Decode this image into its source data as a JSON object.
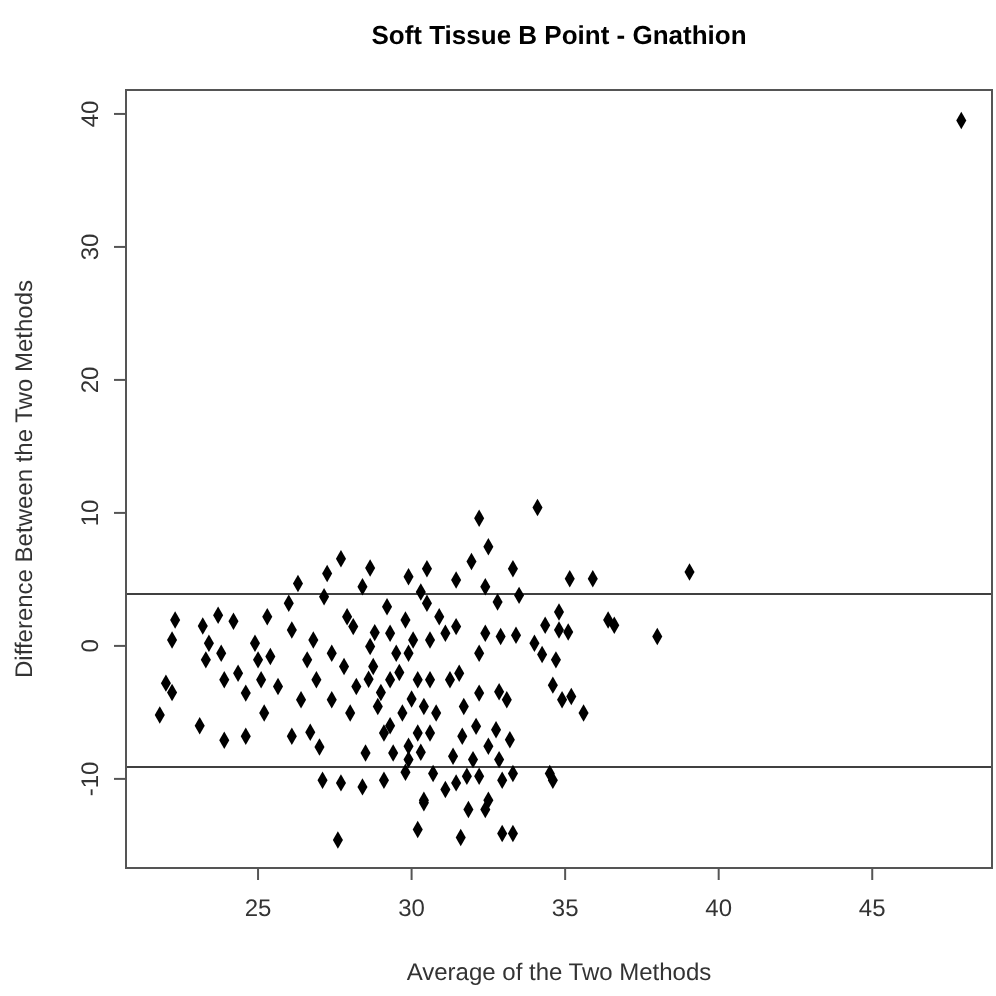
{
  "chart_data": {
    "type": "scatter",
    "title": "Soft Tissue B Point - Gnathion",
    "xlabel": "Average of the Two Methods",
    "ylabel": "Difference Between the Two Methods",
    "xlim": [
      20.7,
      48.9
    ],
    "xticks": [
      25,
      30,
      35,
      40,
      45
    ],
    "ylim": [
      -16.7,
      41.8
    ],
    "yticks": [
      -10,
      0,
      10,
      20,
      30,
      40
    ],
    "grid": false,
    "marker": "diamond",
    "ref_lines": [
      {
        "axis": "y",
        "value": 3.9,
        "color": "#404040"
      },
      {
        "axis": "y",
        "value": -9.1,
        "color": "#404040"
      }
    ],
    "series": [
      {
        "color": "#000000",
        "x": [
          21.8,
          22.0,
          22.2,
          22.2,
          22.3,
          23.1,
          23.2,
          23.3,
          23.4,
          23.7,
          23.9,
          23.8,
          23.9,
          24.2,
          24.35,
          24.6,
          24.6,
          24.9,
          25.0,
          25.1,
          25.2,
          25.3,
          25.4,
          25.65,
          26.0,
          26.1,
          26.1,
          26.3,
          26.4,
          26.6,
          26.7,
          26.8,
          26.9,
          27.0,
          27.1,
          27.15,
          27.25,
          27.4,
          27.4,
          27.6,
          27.7,
          27.7,
          27.8,
          27.9,
          28.0,
          28.1,
          28.2,
          28.4,
          28.5,
          28.4,
          28.65,
          28.65,
          28.75,
          28.9,
          29.1,
          29.1,
          29.2,
          29.3,
          29.3,
          29.4,
          29.5,
          29.7,
          29.9,
          29.9,
          30.05,
          30.2,
          30.4,
          30.5,
          30.5,
          30.6,
          30.6,
          32.2,
          34.1,
          32.5,
          31.95,
          33.3,
          31.45,
          32.4,
          35.15,
          35.9,
          39.05,
          32.8,
          33.5,
          30.3,
          34.8,
          34.35,
          34.8,
          35.1,
          36.4,
          36.6,
          38.0,
          32.4,
          32.9,
          33.4,
          34.0,
          34.25,
          34.7,
          32.2,
          31.45,
          30.9,
          31.1,
          30.6,
          34.6,
          34.9,
          35.2,
          35.6,
          34.5,
          34.6,
          32.85,
          33.1,
          32.2,
          31.55,
          31.25,
          31.7,
          30.8,
          32.1,
          32.75,
          33.2,
          32.5,
          31.65,
          31.35,
          32.0,
          32.85,
          33.3,
          32.95,
          31.8,
          32.2,
          31.45,
          31.1,
          30.7,
          30.4,
          32.5,
          32.4,
          31.85,
          31.6,
          32.95,
          33.3,
          30.2,
          29.9,
          30.4,
          30.2,
          29.9,
          29.8,
          29.0,
          29.6,
          28.8,
          30.0,
          29.3,
          28.6,
          29.8,
          30.3,
          47.9
        ],
        "values": [
          -5.2,
          -2.8,
          -3.5,
          0.45,
          1.95,
          -6.0,
          1.5,
          -1.05,
          0.2,
          2.3,
          -7.1,
          -0.55,
          -2.55,
          1.85,
          -2.05,
          -3.55,
          -6.8,
          0.2,
          -1.05,
          -2.55,
          -5.05,
          2.2,
          -0.8,
          -3.05,
          3.2,
          1.2,
          -6.8,
          4.7,
          -4.05,
          -1.05,
          -6.5,
          0.45,
          -2.55,
          -7.6,
          -10.1,
          3.7,
          5.45,
          -0.55,
          -4.05,
          -14.6,
          6.55,
          -10.3,
          -1.55,
          2.2,
          -5.05,
          1.45,
          -3.05,
          -10.6,
          -8.05,
          4.45,
          5.85,
          -0.05,
          -1.55,
          -4.55,
          -10.1,
          -6.55,
          2.95,
          0.95,
          -2.55,
          -8.05,
          -0.55,
          -5.05,
          5.2,
          -8.55,
          0.45,
          -13.8,
          -11.6,
          5.8,
          3.2,
          -2.55,
          -6.55,
          9.6,
          10.4,
          7.45,
          6.35,
          5.8,
          4.95,
          4.45,
          5.05,
          5.05,
          5.55,
          3.3,
          3.8,
          4.05,
          2.55,
          1.55,
          1.2,
          1.05,
          1.95,
          1.55,
          0.7,
          0.95,
          0.7,
          0.8,
          0.2,
          -0.65,
          -1.05,
          -0.55,
          1.45,
          2.2,
          0.95,
          0.45,
          -2.95,
          -4.05,
          -3.8,
          -5.05,
          -9.6,
          -10.1,
          -3.45,
          -4.05,
          -3.55,
          -2.05,
          -2.55,
          -4.55,
          -5.05,
          -6.05,
          -6.3,
          -7.05,
          -7.55,
          -6.8,
          -8.3,
          -8.55,
          -8.55,
          -9.6,
          -10.1,
          -9.8,
          -9.8,
          -10.3,
          -10.8,
          -9.6,
          -11.8,
          -11.6,
          -12.3,
          -12.3,
          -14.4,
          -14.1,
          -14.1,
          -6.55,
          -7.55,
          -4.55,
          -2.55,
          -0.55,
          1.95,
          -3.5,
          -2.0,
          1.0,
          -4.0,
          -6.0,
          -2.5,
          -9.5,
          -8.0,
          39.5
        ]
      }
    ]
  }
}
